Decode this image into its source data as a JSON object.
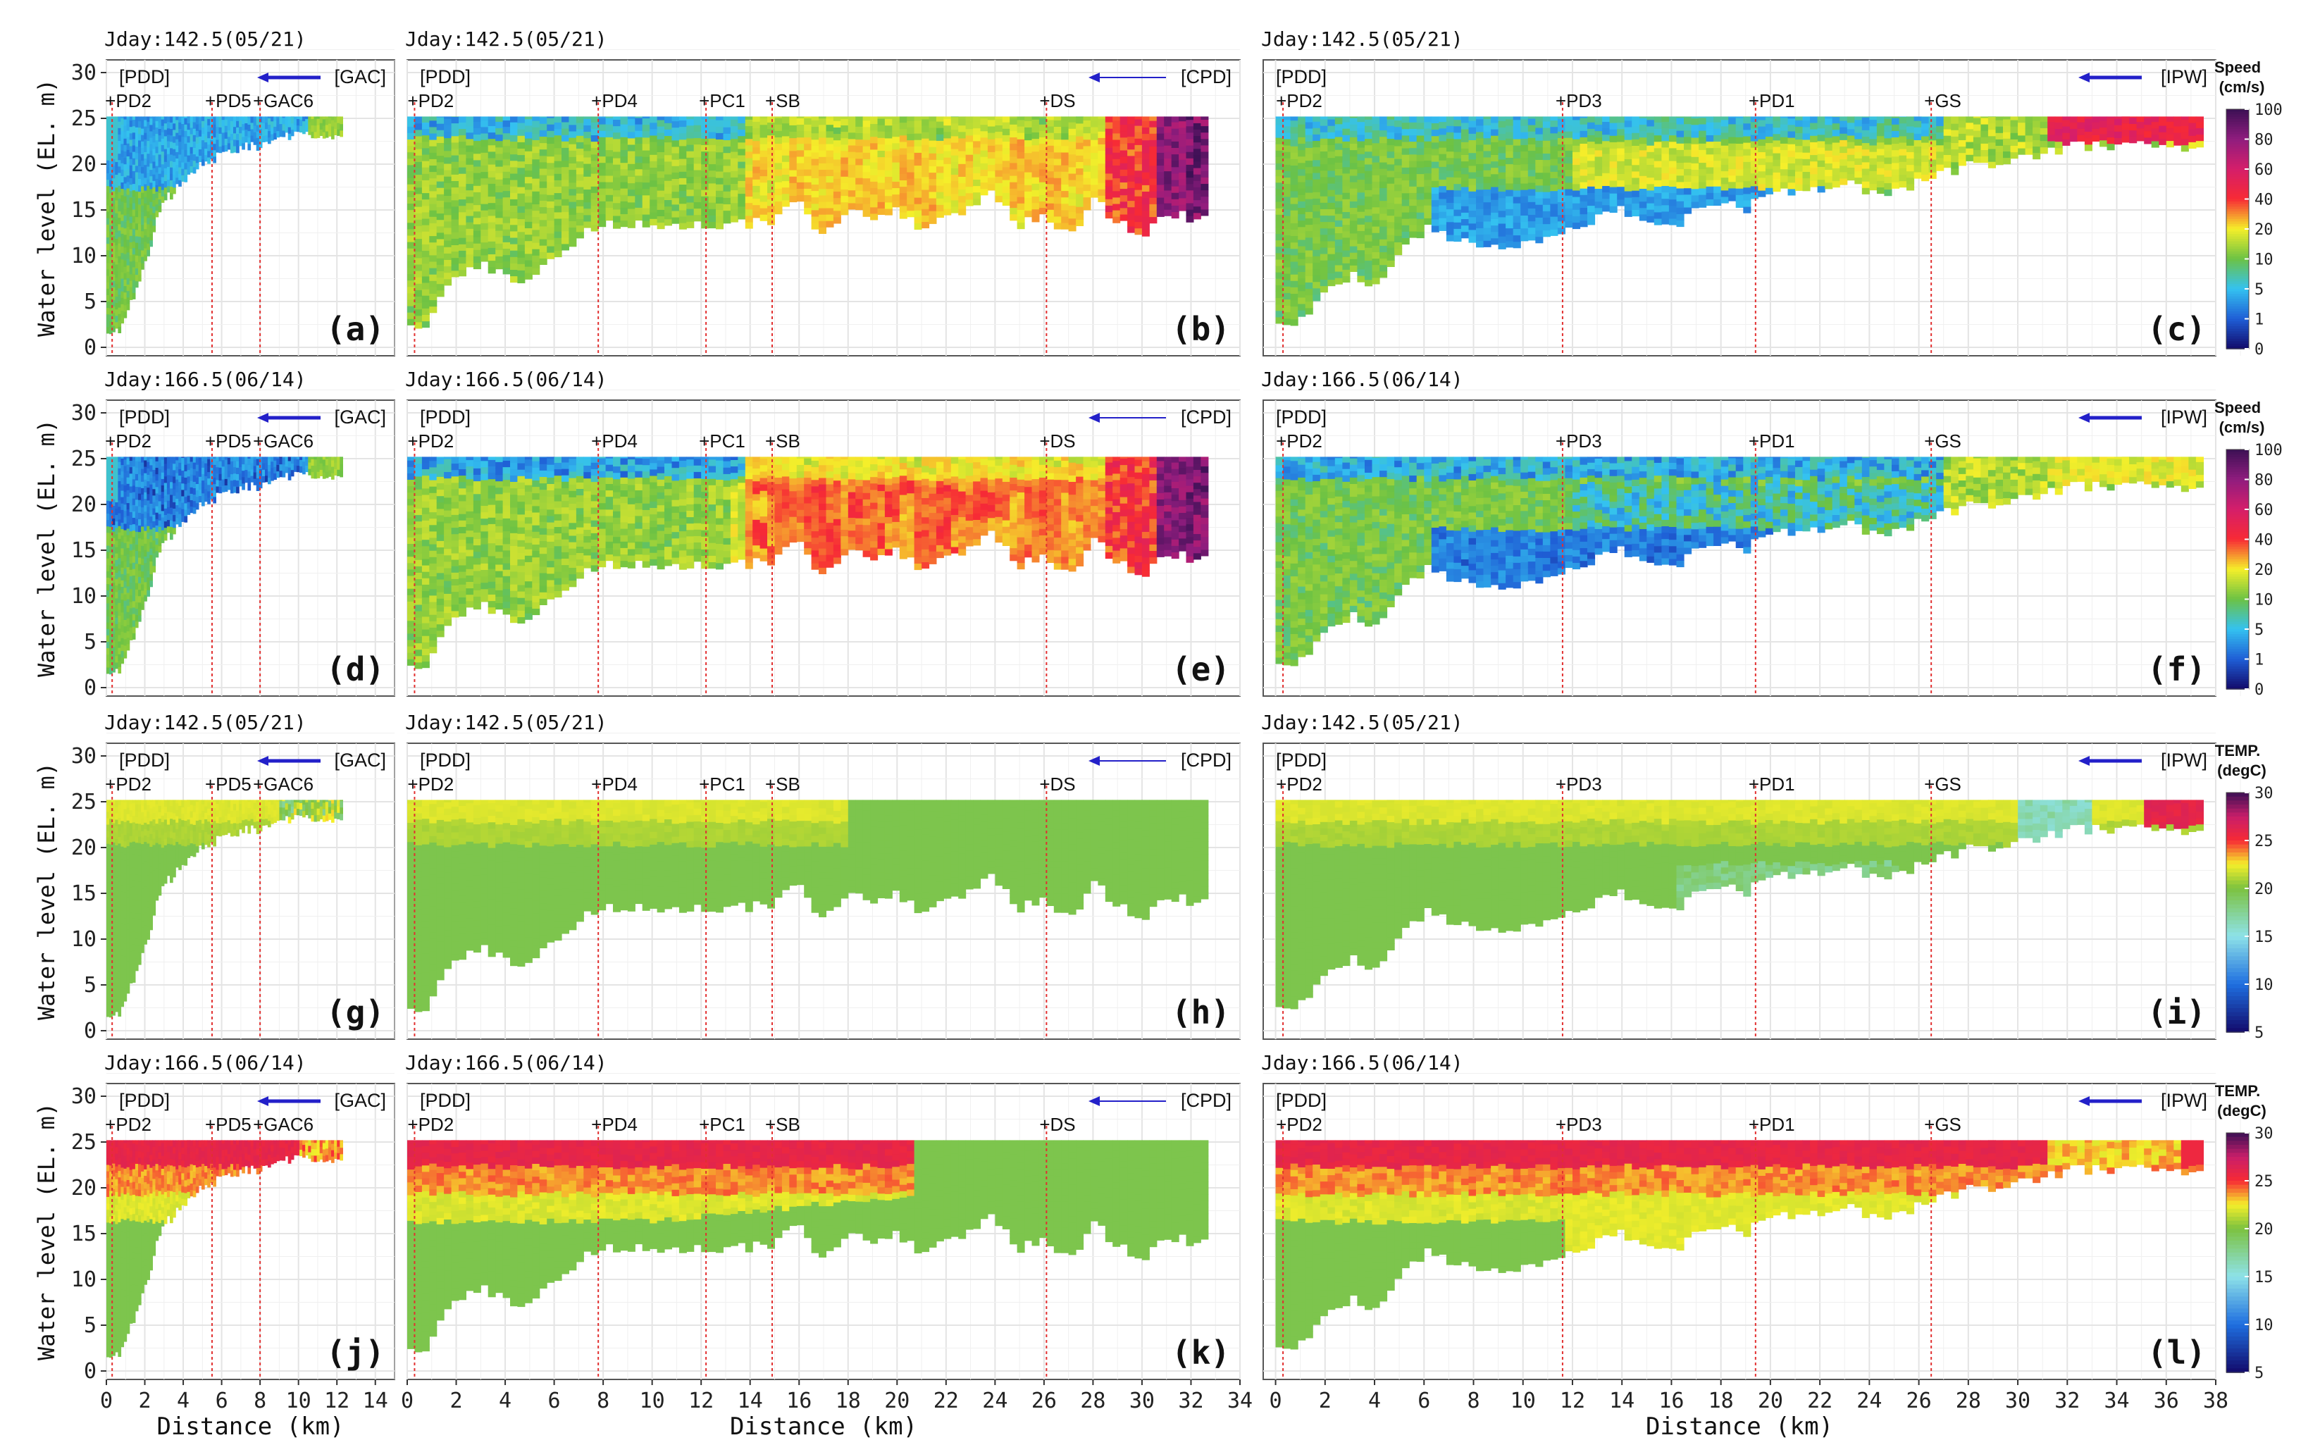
{
  "chart_data": {
    "type": "heatmap",
    "title": "",
    "xlabel": "Distance (km)",
    "ylabel": "Water level (EL. m)",
    "ylim": [
      0,
      30
    ],
    "y_ticks": [
      0,
      5,
      10,
      15,
      20,
      25,
      30
    ],
    "columns": [
      {
        "name": "PDD-GAC",
        "direction_label": "[GAC]",
        "origin_label": "[PDD]",
        "xlim": [
          0,
          15
        ],
        "x_ticks": [
          0,
          2,
          4,
          6,
          8,
          10,
          12,
          14
        ],
        "stations": [
          {
            "name": "+PD2",
            "km": 0.3
          },
          {
            "name": "+PD5",
            "km": 5.5
          },
          {
            "name": "+GAC6",
            "km": 8.0
          }
        ],
        "extent_km": 12.2,
        "surface_level": 25.2,
        "bottom_profile": [
          [
            0,
            2
          ],
          [
            0.5,
            1.5
          ],
          [
            1,
            3
          ],
          [
            1.5,
            6
          ],
          [
            2,
            9
          ],
          [
            2.5,
            13
          ],
          [
            3,
            16
          ],
          [
            4,
            18
          ],
          [
            5,
            20
          ],
          [
            6,
            21
          ],
          [
            7,
            22
          ],
          [
            8,
            22
          ],
          [
            9,
            23
          ],
          [
            10,
            23
          ],
          [
            11,
            23
          ],
          [
            12,
            23
          ]
        ]
      },
      {
        "name": "PDD-CPD",
        "direction_label": "[CPD]",
        "origin_label": "[PDD]",
        "xlim": [
          0,
          34
        ],
        "x_ticks": [
          0,
          2,
          4,
          6,
          8,
          10,
          12,
          14,
          16,
          18,
          20,
          22,
          24,
          26,
          28,
          30,
          32,
          34
        ],
        "stations": [
          {
            "name": "+PD2",
            "km": 0.3
          },
          {
            "name": "+PD4",
            "km": 7.8
          },
          {
            "name": "+PC1",
            "km": 12.2
          },
          {
            "name": "+SB",
            "km": 14.9
          },
          {
            "name": "+DS",
            "km": 26.1
          }
        ],
        "extent_km": 32.7,
        "surface_level": 25.2,
        "bottom_profile": [
          [
            0,
            2
          ],
          [
            0.5,
            1.5
          ],
          [
            1,
            4
          ],
          [
            2,
            8
          ],
          [
            3,
            9
          ],
          [
            4,
            8
          ],
          [
            5,
            7
          ],
          [
            6,
            10
          ],
          [
            7,
            12
          ],
          [
            8,
            13.5
          ],
          [
            9,
            13.5
          ],
          [
            10,
            13.5
          ],
          [
            11,
            13.5
          ],
          [
            12,
            13.5
          ],
          [
            13,
            13.5
          ],
          [
            14,
            13.5
          ],
          [
            15,
            14
          ],
          [
            16,
            16
          ],
          [
            17,
            12
          ],
          [
            18,
            15
          ],
          [
            19,
            14
          ],
          [
            20,
            15
          ],
          [
            21,
            13
          ],
          [
            22,
            14
          ],
          [
            23,
            15
          ],
          [
            24,
            17
          ],
          [
            25,
            13
          ],
          [
            26,
            15
          ],
          [
            27,
            12
          ],
          [
            28,
            16
          ],
          [
            29,
            14
          ],
          [
            30,
            12
          ],
          [
            31,
            15
          ],
          [
            32,
            14
          ],
          [
            32.7,
            14
          ]
        ]
      },
      {
        "name": "PDD-IPW",
        "direction_label": "[IPW]",
        "origin_label": "[PDD]",
        "xlim": [
          -0.5,
          38
        ],
        "x_ticks": [
          0,
          2,
          4,
          6,
          8,
          10,
          12,
          14,
          16,
          18,
          20,
          22,
          24,
          26,
          28,
          30,
          32,
          34,
          36,
          38
        ],
        "stations": [
          {
            "name": "+PD2",
            "km": 0.3
          },
          {
            "name": "+PD3",
            "km": 11.6
          },
          {
            "name": "+PD1",
            "km": 19.4
          },
          {
            "name": "+GS",
            "km": 26.5
          }
        ],
        "extent_km": 37.3,
        "surface_level": 25.2,
        "bottom_profile": [
          [
            0,
            2
          ],
          [
            1,
            3
          ],
          [
            2,
            6
          ],
          [
            3,
            8
          ],
          [
            4,
            7
          ],
          [
            5,
            10
          ],
          [
            6,
            13
          ],
          [
            7,
            12
          ],
          [
            8,
            11
          ],
          [
            9,
            11
          ],
          [
            10,
            11
          ],
          [
            11,
            12
          ],
          [
            12,
            13
          ],
          [
            13,
            14
          ],
          [
            14,
            15
          ],
          [
            15,
            14
          ],
          [
            16,
            13
          ],
          [
            17,
            15
          ],
          [
            18,
            16
          ],
          [
            19,
            15
          ],
          [
            20,
            17
          ],
          [
            21,
            17
          ],
          [
            22,
            17
          ],
          [
            23,
            18
          ],
          [
            24,
            17
          ],
          [
            25,
            17
          ],
          [
            26,
            18
          ],
          [
            27,
            19
          ],
          [
            28,
            20
          ],
          [
            29,
            20
          ],
          [
            30,
            21
          ],
          [
            31,
            21
          ],
          [
            32,
            22
          ],
          [
            33,
            22
          ],
          [
            34,
            22
          ],
          [
            35,
            22
          ],
          [
            36,
            22
          ],
          [
            37,
            22
          ],
          [
            37.3,
            22
          ]
        ]
      }
    ],
    "rows": [
      {
        "variable": "speed",
        "jday_label": "Jday:142.5(05/21)",
        "panel_letters": [
          "(a)",
          "(b)",
          "(c)"
        ],
        "variant": 0
      },
      {
        "variable": "speed",
        "jday_label": "Jday:166.5(06/14)",
        "panel_letters": [
          "(d)",
          "(e)",
          "(f)"
        ],
        "variant": 1
      },
      {
        "variable": "temperature",
        "jday_label": "Jday:142.5(05/21)",
        "panel_letters": [
          "(g)",
          "(h)",
          "(i)"
        ],
        "variant": 0
      },
      {
        "variable": "temperature",
        "jday_label": "Jday:166.5(06/14)",
        "panel_letters": [
          "(j)",
          "(k)",
          "(l)"
        ],
        "variant": 1
      }
    ],
    "legends": {
      "speed": {
        "title_line1": "Speed",
        "title_line2": "(cm/s)",
        "tick_labels": [
          "100",
          "80",
          "60",
          "40",
          "20",
          "10",
          "5",
          "1",
          "0"
        ],
        "stops": [
          {
            "value": 0,
            "color": "#120a6b"
          },
          {
            "value": 1,
            "color": "#1f5fd6"
          },
          {
            "value": 5,
            "color": "#34c2f0"
          },
          {
            "value": 10,
            "color": "#6cc244"
          },
          {
            "value": 20,
            "color": "#f5ef2a"
          },
          {
            "value": 40,
            "color": "#f72a35"
          },
          {
            "value": 60,
            "color": "#d51e6a"
          },
          {
            "value": 80,
            "color": "#8f1d7e"
          },
          {
            "value": 100,
            "color": "#3b1054"
          }
        ]
      },
      "temperature": {
        "title_line1": "TEMP.",
        "title_line2": "(degC)",
        "tick_labels": [
          "30",
          "25",
          "20",
          "15",
          "10",
          "5"
        ],
        "stops": [
          {
            "value": 5,
            "color": "#120a6b"
          },
          {
            "value": 10,
            "color": "#1f6fe0"
          },
          {
            "value": 15,
            "color": "#8ee2e8"
          },
          {
            "value": 20,
            "color": "#7cc23f"
          },
          {
            "value": 22.5,
            "color": "#f5ef2a"
          },
          {
            "value": 25,
            "color": "#f72a35"
          },
          {
            "value": 27.5,
            "color": "#c81e6a"
          },
          {
            "value": 30,
            "color": "#3b1054"
          }
        ]
      }
    }
  }
}
